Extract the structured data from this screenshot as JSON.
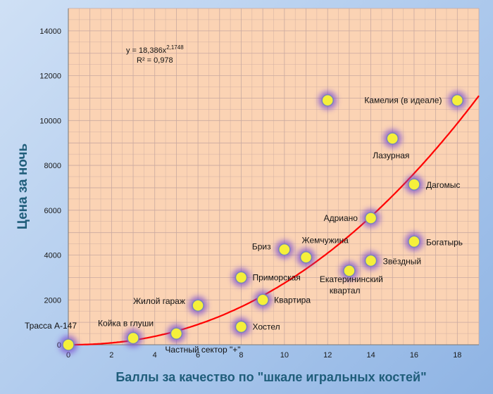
{
  "chart_data": {
    "type": "scatter",
    "xlabel": "Баллы за качество по \"шкале игральных костей\"",
    "ylabel": "Цена за ночь",
    "xlim": [
      0,
      19
    ],
    "ylim": [
      0,
      15000
    ],
    "x_ticks": [
      "0",
      "2",
      "4",
      "6",
      "8",
      "10",
      "12",
      "14",
      "16",
      "18"
    ],
    "y_ticks": [
      "0",
      "2000",
      "4000",
      "6000",
      "8000",
      "10000",
      "12000",
      "14000"
    ],
    "grid": true,
    "legend": "none",
    "trendline": {
      "type": "power",
      "a": 18.386,
      "b": 2.1748,
      "equation_text": "y = 18,386x",
      "equation_exponent": "2,1748",
      "r2_text": "R² = 0,978",
      "color": "#ff0000"
    },
    "points": [
      {
        "label": "Трасса А-147",
        "x": 0,
        "y": 0
      },
      {
        "label": "Койка в глуши",
        "x": 3,
        "y": 300
      },
      {
        "label": "Частный сектор \"+\"",
        "x": 5,
        "y": 500
      },
      {
        "label": "Жилой гараж",
        "x": 6,
        "y": 1750
      },
      {
        "label": "Хостел",
        "x": 8,
        "y": 800
      },
      {
        "label": "Приморская",
        "x": 8,
        "y": 3000
      },
      {
        "label": "Квартира",
        "x": 9,
        "y": 2000
      },
      {
        "label": "Бриз",
        "x": 10,
        "y": 4250
      },
      {
        "label": "Жемчужина",
        "x": 11,
        "y": 3900
      },
      {
        "label": "",
        "x": 12,
        "y": 10900
      },
      {
        "label": "Екатерининский квартал",
        "x": 13,
        "y": 3300
      },
      {
        "label": "Адриано",
        "x": 14,
        "y": 5650
      },
      {
        "label": "Звёздный",
        "x": 14,
        "y": 3750
      },
      {
        "label": "Лазурная",
        "x": 15,
        "y": 9200
      },
      {
        "label": "Дагомыс",
        "x": 16,
        "y": 7150
      },
      {
        "label": "Богатырь",
        "x": 16,
        "y": 4600
      },
      {
        "label": "Камелия (в идеале)",
        "x": 18,
        "y": 10900
      }
    ]
  },
  "colors": {
    "plot_background": "#fbd3b4",
    "grid": "#c9a9a0",
    "marker_fill": "#f5f03a",
    "marker_stroke": "#7a86b8",
    "marker_glow": "#7a4fd0",
    "axis_title": "#1f5d7a"
  }
}
